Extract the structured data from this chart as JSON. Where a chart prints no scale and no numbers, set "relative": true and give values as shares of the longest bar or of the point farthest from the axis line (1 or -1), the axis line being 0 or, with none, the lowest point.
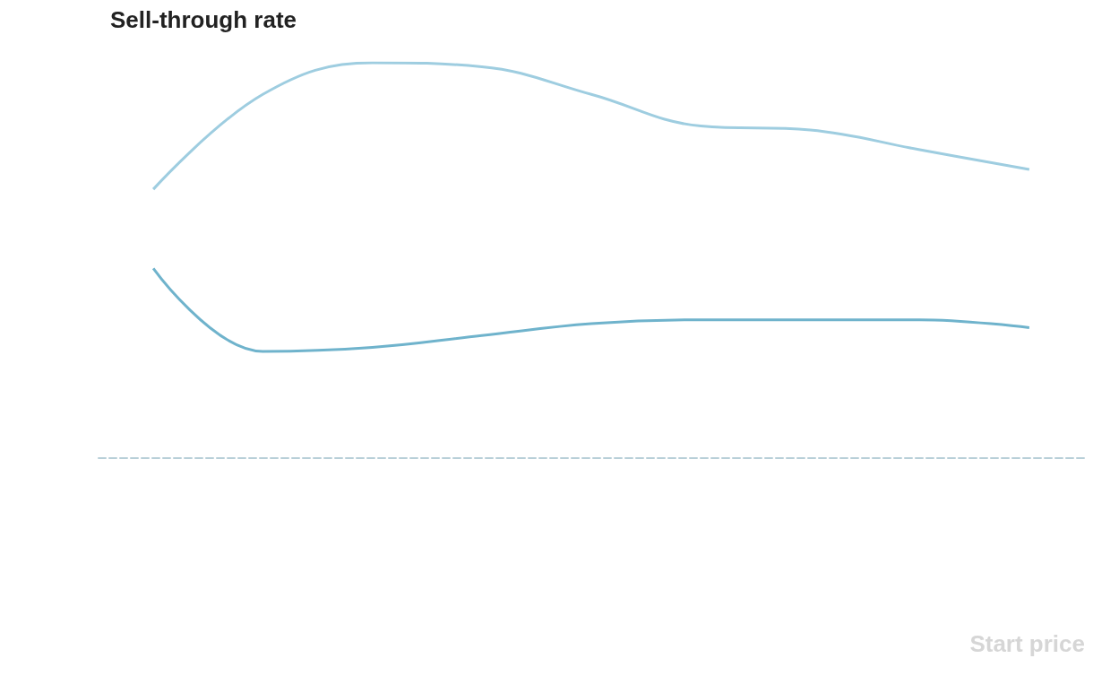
{
  "chart_data": {
    "type": "line",
    "title": "Sell-through rate",
    "annotations": [
      "Start price"
    ],
    "relative": true,
    "categories": [
      null,
      null,
      null,
      null,
      null,
      null,
      null,
      null,
      null
    ],
    "series": [
      {
        "color": "#9ecde0",
        "values": [
          0.68,
          0.92,
          1,
          0.99,
          0.92,
          0.84,
          0.83,
          0.78,
          0.73
        ]
      },
      {
        "color": "#6fb3cc",
        "values": [
          0.48,
          0.27,
          0.28,
          0.31,
          0.34,
          0.35,
          0.35,
          0.35,
          0.33
        ]
      }
    ],
    "marker": "none",
    "line_style": "solid"
  }
}
